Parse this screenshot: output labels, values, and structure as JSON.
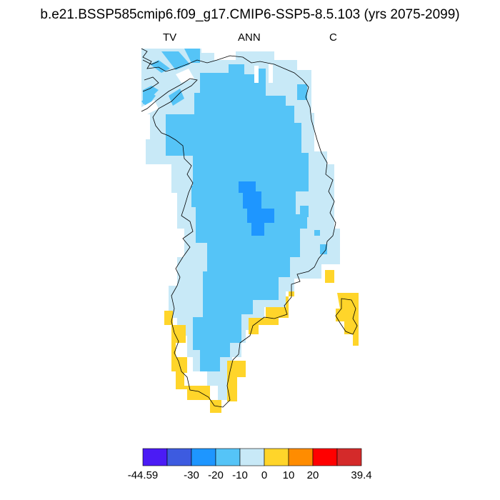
{
  "title": "b.e21.BSSP585cmip6.f09_g17.CMIP6-SSP5-8.5.103 (yrs 2075-2099)",
  "subtitles": {
    "left": "TV",
    "center": "ANN",
    "right": "C"
  },
  "map": {
    "region": "Greenland",
    "categories": {
      "lt_m30": "#3d5be0",
      "m30_m20": "#1e96ff",
      "m20_m10": "#55c4f7",
      "m10_0": "#c8e9f7",
      "0_10": "#ffd52a"
    }
  },
  "colorbar": {
    "colors": [
      "#4b1bf5",
      "#3d5be0",
      "#1e96ff",
      "#55c4f7",
      "#c8e9f7",
      "#ffd52a",
      "#ff8c00",
      "#ff0000",
      "#d42a2a"
    ],
    "labels": [
      "-44.59",
      "-30",
      "-20",
      "-10",
      "0",
      "10",
      "20",
      "39.4"
    ]
  }
}
